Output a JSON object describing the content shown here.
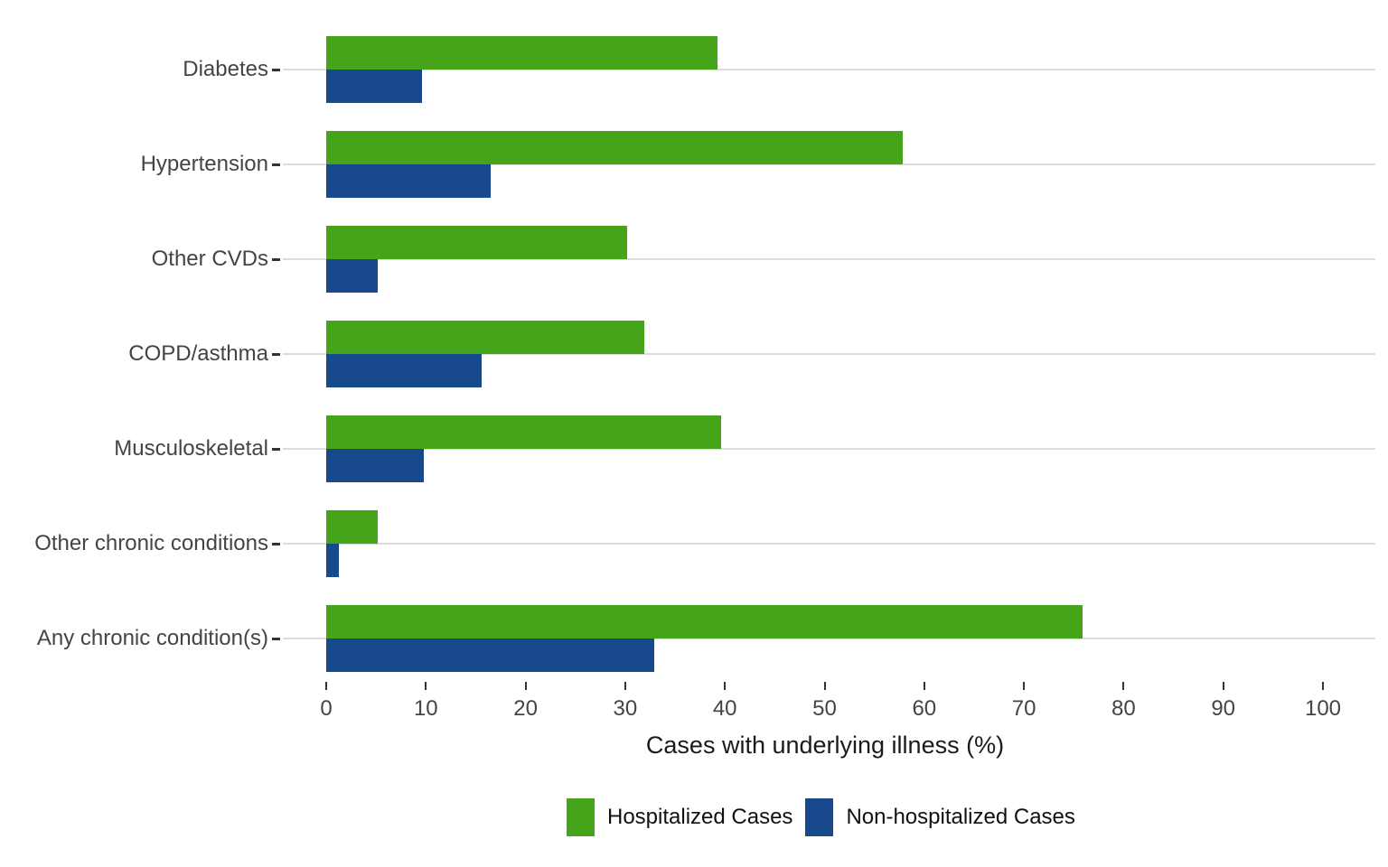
{
  "chart_data": {
    "type": "bar",
    "orientation": "horizontal",
    "title": "",
    "xlabel": "Cases with underlying illness (%)",
    "ylabel": "",
    "xlim": [
      0,
      100
    ],
    "x_ticks": [
      0,
      10,
      20,
      30,
      40,
      50,
      60,
      70,
      80,
      90,
      100
    ],
    "grid": "horizontal category gridlines only",
    "legend_position": "bottom",
    "categories": [
      "Diabetes",
      "Hypertension",
      "Other CVDs",
      "COPD/asthma",
      "Musculoskeletal",
      "Other chronic conditions",
      "Any chronic condition(s)"
    ],
    "series": [
      {
        "name": "Hospitalized Cases",
        "color": "#45A41A",
        "values": [
          39.3,
          57.8,
          30.2,
          31.9,
          39.6,
          5.2,
          75.9
        ]
      },
      {
        "name": "Non-hospitalized Cases",
        "color": "#17498C",
        "values": [
          9.6,
          16.5,
          5.2,
          15.6,
          9.8,
          1.3,
          32.9
        ]
      }
    ],
    "colors": {
      "hospitalized": "#45A41A",
      "non_hospitalized": "#17498C",
      "gridline": "#DCDCDC",
      "axis_text": "#444444",
      "tick_mark": "#333333",
      "axis_title": "#1A1A1A"
    }
  }
}
